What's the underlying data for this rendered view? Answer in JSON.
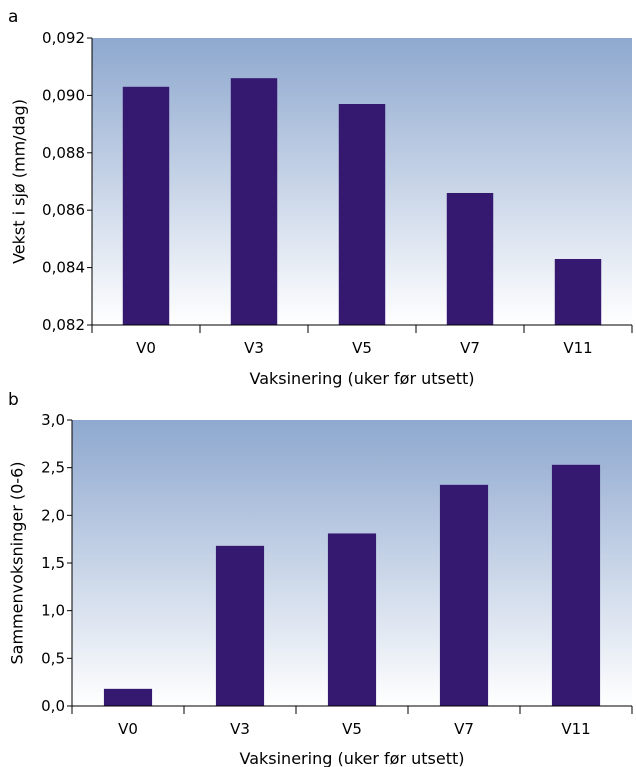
{
  "chart_data": [
    {
      "type": "bar",
      "panel_label": "a",
      "categories": [
        "V0",
        "V3",
        "V5",
        "V7",
        "V11"
      ],
      "values": [
        0.0903,
        0.0906,
        0.0897,
        0.0866,
        0.0843
      ],
      "xlabel": "Vaksinering (uker før utsett)",
      "ylabel": "Vekst i sjø (mm/dag)",
      "ylim": [
        0.082,
        0.092
      ],
      "yticks": [
        "0,082",
        "0,084",
        "0,086",
        "0,088",
        "0,090",
        "0,092"
      ],
      "bar_color": "#35186f",
      "background_gradient": [
        "#8ea8cf",
        "#ffffff"
      ]
    },
    {
      "type": "bar",
      "panel_label": "b",
      "categories": [
        "V0",
        "V3",
        "V5",
        "V7",
        "V11"
      ],
      "values": [
        0.18,
        1.68,
        1.81,
        2.32,
        2.53
      ],
      "xlabel": "Vaksinering (uker før utsett)",
      "ylabel": "Sammenvoksninger (0-6)",
      "ylim": [
        0,
        3.0
      ],
      "yticks": [
        "0,0",
        "0,5",
        "1,0",
        "1,5",
        "2,0",
        "2,5",
        "3,0"
      ],
      "bar_color": "#35186f",
      "background_gradient": [
        "#8ea8cf",
        "#ffffff"
      ]
    }
  ]
}
